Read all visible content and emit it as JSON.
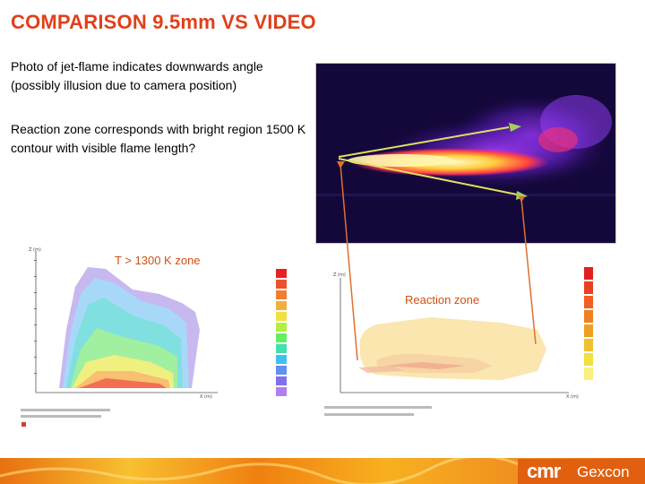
{
  "slide": {
    "title": "COMPARISON 9.5mm VS VIDEO",
    "paragraph1": "Photo of jet-flame indicates downwards angle (possibly illusion due to camera position)",
    "paragraph2": "Reaction zone corresponds with bright region 1500 K contour with visible flame length?",
    "temp_zone_label": "T > 1300 K zone",
    "reaction_zone_label": "Reaction zone"
  },
  "logo": {
    "brand": "cmr",
    "name": "Gexcon"
  },
  "colors": {
    "title": "#e0401a",
    "accent": "#e06010",
    "zone_label": "#d05010",
    "arrow_line": "#e07030",
    "arrow_head": "#a0d060"
  }
}
